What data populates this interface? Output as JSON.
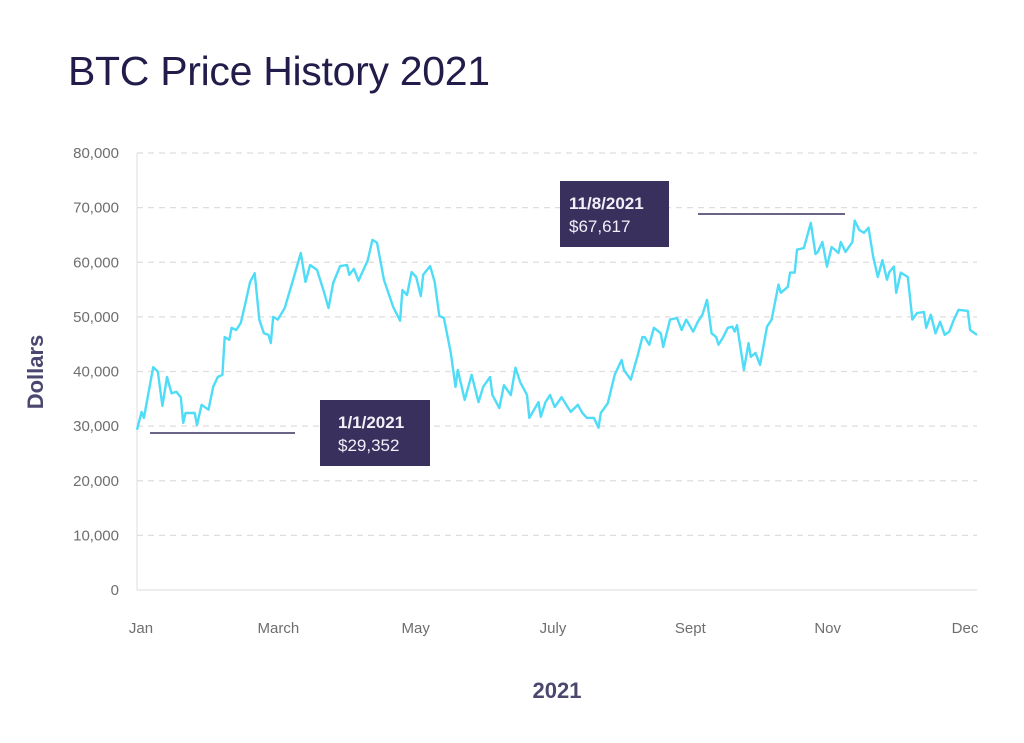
{
  "chart_data": {
    "type": "line",
    "title": "BTC Price History 2021",
    "xlabel": "2021",
    "ylabel": "Dollars",
    "ylim": [
      0,
      80000
    ],
    "y_ticks": [
      "0",
      "10,000",
      "20,000",
      "30,000",
      "40,000",
      "50,000",
      "60,000",
      "70,000",
      "80,000"
    ],
    "x_ticks": [
      "Jan",
      "March",
      "May",
      "July",
      "Sept",
      "Nov",
      "Dec"
    ],
    "grid": true,
    "line_color": "#4fdcf7",
    "annotation_color": "#3a305e",
    "annotations": [
      {
        "date_label": "1/1/2021",
        "value_label": "$29,352",
        "x": "2021-01-01",
        "y": 29352
      },
      {
        "date_label": "11/8/2021",
        "value_label": "$67,617",
        "x": "2021-11-08",
        "y": 67617
      }
    ],
    "series": [
      {
        "points": [
          [
            "2021-01-01",
            29352
          ],
          [
            "2021-01-03",
            32600
          ],
          [
            "2021-01-04",
            31500
          ],
          [
            "2021-01-08",
            40800
          ],
          [
            "2021-01-10",
            40000
          ],
          [
            "2021-01-12",
            33700
          ],
          [
            "2021-01-14",
            39000
          ],
          [
            "2021-01-16",
            36000
          ],
          [
            "2021-01-18",
            36300
          ],
          [
            "2021-01-20",
            35300
          ],
          [
            "2021-01-21",
            30600
          ],
          [
            "2021-01-22",
            32400
          ],
          [
            "2021-01-26",
            32400
          ],
          [
            "2021-01-27",
            30200
          ],
          [
            "2021-01-29",
            33900
          ],
          [
            "2021-02-01",
            33000
          ],
          [
            "2021-02-03",
            37200
          ],
          [
            "2021-02-05",
            39000
          ],
          [
            "2021-02-07",
            39400
          ],
          [
            "2021-02-08",
            46300
          ],
          [
            "2021-02-10",
            45800
          ],
          [
            "2021-02-11",
            48000
          ],
          [
            "2021-02-13",
            47600
          ],
          [
            "2021-02-15",
            48900
          ],
          [
            "2021-02-17",
            52600
          ],
          [
            "2021-02-19",
            56400
          ],
          [
            "2021-02-21",
            58000
          ],
          [
            "2021-02-23",
            49500
          ],
          [
            "2021-02-25",
            47000
          ],
          [
            "2021-02-27",
            46700
          ],
          [
            "2021-02-28",
            45200
          ],
          [
            "2021-03-01",
            50000
          ],
          [
            "2021-03-03",
            49500
          ],
          [
            "2021-03-06",
            51600
          ],
          [
            "2021-03-10",
            57300
          ],
          [
            "2021-03-13",
            61700
          ],
          [
            "2021-03-15",
            56400
          ],
          [
            "2021-03-17",
            59500
          ],
          [
            "2021-03-20",
            58600
          ],
          [
            "2021-03-23",
            54600
          ],
          [
            "2021-03-25",
            51600
          ],
          [
            "2021-03-27",
            56200
          ],
          [
            "2021-03-30",
            59300
          ],
          [
            "2021-04-02",
            59500
          ],
          [
            "2021-04-03",
            57700
          ],
          [
            "2021-04-05",
            58800
          ],
          [
            "2021-04-07",
            56600
          ],
          [
            "2021-04-11",
            60400
          ],
          [
            "2021-04-13",
            64100
          ],
          [
            "2021-04-15",
            63600
          ],
          [
            "2021-04-18",
            56800
          ],
          [
            "2021-04-22",
            51800
          ],
          [
            "2021-04-25",
            49300
          ],
          [
            "2021-04-26",
            54900
          ],
          [
            "2021-04-28",
            54000
          ],
          [
            "2021-04-30",
            58200
          ],
          [
            "2021-05-02",
            57300
          ],
          [
            "2021-05-04",
            53800
          ],
          [
            "2021-05-05",
            57700
          ],
          [
            "2021-05-08",
            59300
          ],
          [
            "2021-05-10",
            56400
          ],
          [
            "2021-05-12",
            50200
          ],
          [
            "2021-05-14",
            49800
          ],
          [
            "2021-05-17",
            43400
          ],
          [
            "2021-05-19",
            37200
          ],
          [
            "2021-05-20",
            40300
          ],
          [
            "2021-05-23",
            34800
          ],
          [
            "2021-05-26",
            39400
          ],
          [
            "2021-05-29",
            34400
          ],
          [
            "2021-05-31",
            37200
          ],
          [
            "2021-06-03",
            39000
          ],
          [
            "2021-06-04",
            35700
          ],
          [
            "2021-06-07",
            33300
          ],
          [
            "2021-06-09",
            37500
          ],
          [
            "2021-06-12",
            35700
          ],
          [
            "2021-06-14",
            40700
          ],
          [
            "2021-06-16",
            38100
          ],
          [
            "2021-06-19",
            35700
          ],
          [
            "2021-06-20",
            31500
          ],
          [
            "2021-06-24",
            34400
          ],
          [
            "2021-06-25",
            31700
          ],
          [
            "2021-06-27",
            34400
          ],
          [
            "2021-06-29",
            35700
          ],
          [
            "2021-07-01",
            33500
          ],
          [
            "2021-07-04",
            35300
          ],
          [
            "2021-07-06",
            33900
          ],
          [
            "2021-07-08",
            32600
          ],
          [
            "2021-07-11",
            33900
          ],
          [
            "2021-07-13",
            32400
          ],
          [
            "2021-07-15",
            31500
          ],
          [
            "2021-07-18",
            31500
          ],
          [
            "2021-07-20",
            29700
          ],
          [
            "2021-07-21",
            32400
          ],
          [
            "2021-07-24",
            34200
          ],
          [
            "2021-07-27",
            39400
          ],
          [
            "2021-07-30",
            42100
          ],
          [
            "2021-07-31",
            40300
          ],
          [
            "2021-08-03",
            38500
          ],
          [
            "2021-08-06",
            43000
          ],
          [
            "2021-08-08",
            46300
          ],
          [
            "2021-08-09",
            46300
          ],
          [
            "2021-08-11",
            44900
          ],
          [
            "2021-08-13",
            48000
          ],
          [
            "2021-08-16",
            47000
          ],
          [
            "2021-08-17",
            44500
          ],
          [
            "2021-08-20",
            49500
          ],
          [
            "2021-08-23",
            49800
          ],
          [
            "2021-08-25",
            47600
          ],
          [
            "2021-08-27",
            49500
          ],
          [
            "2021-08-30",
            47300
          ],
          [
            "2021-09-01",
            49100
          ],
          [
            "2021-09-03",
            50400
          ],
          [
            "2021-09-05",
            53100
          ],
          [
            "2021-09-07",
            47000
          ],
          [
            "2021-09-09",
            46300
          ],
          [
            "2021-09-10",
            44900
          ],
          [
            "2021-09-12",
            46300
          ],
          [
            "2021-09-14",
            48000
          ],
          [
            "2021-09-16",
            48200
          ],
          [
            "2021-09-17",
            47300
          ],
          [
            "2021-09-18",
            48500
          ],
          [
            "2021-09-21",
            40300
          ],
          [
            "2021-09-23",
            45200
          ],
          [
            "2021-09-24",
            42700
          ],
          [
            "2021-09-26",
            43400
          ],
          [
            "2021-09-28",
            41200
          ],
          [
            "2021-10-01",
            48200
          ],
          [
            "2021-10-03",
            49500
          ],
          [
            "2021-10-06",
            55900
          ],
          [
            "2021-10-07",
            54400
          ],
          [
            "2021-10-10",
            55500
          ],
          [
            "2021-10-11",
            58100
          ],
          [
            "2021-10-13",
            58100
          ],
          [
            "2021-10-14",
            62300
          ],
          [
            "2021-10-17",
            62600
          ],
          [
            "2021-10-20",
            67200
          ],
          [
            "2021-10-22",
            61500
          ],
          [
            "2021-10-23",
            61900
          ],
          [
            "2021-10-25",
            63700
          ],
          [
            "2021-10-27",
            59200
          ],
          [
            "2021-10-29",
            62800
          ],
          [
            "2021-11-01",
            61700
          ],
          [
            "2021-11-02",
            63700
          ],
          [
            "2021-11-04",
            61900
          ],
          [
            "2021-11-07",
            63700
          ],
          [
            "2021-11-08",
            67617
          ],
          [
            "2021-11-10",
            65900
          ],
          [
            "2021-11-12",
            65400
          ],
          [
            "2021-11-14",
            66300
          ],
          [
            "2021-11-16",
            61000
          ],
          [
            "2021-11-18",
            57300
          ],
          [
            "2021-11-20",
            60400
          ],
          [
            "2021-11-22",
            56800
          ],
          [
            "2021-11-23",
            58200
          ],
          [
            "2021-11-25",
            59200
          ],
          [
            "2021-11-26",
            54400
          ],
          [
            "2021-11-28",
            58100
          ],
          [
            "2021-12-01",
            57300
          ],
          [
            "2021-12-03",
            49500
          ],
          [
            "2021-12-05",
            50700
          ],
          [
            "2021-12-08",
            50900
          ],
          [
            "2021-12-09",
            48000
          ],
          [
            "2021-12-11",
            50400
          ],
          [
            "2021-12-13",
            47000
          ],
          [
            "2021-12-15",
            49100
          ],
          [
            "2021-12-17",
            46700
          ],
          [
            "2021-12-19",
            47300
          ],
          [
            "2021-12-21",
            49500
          ],
          [
            "2021-12-23",
            51300
          ],
          [
            "2021-12-27",
            51100
          ],
          [
            "2021-12-28",
            47600
          ],
          [
            "2021-12-31",
            46700
          ]
        ]
      }
    ]
  }
}
